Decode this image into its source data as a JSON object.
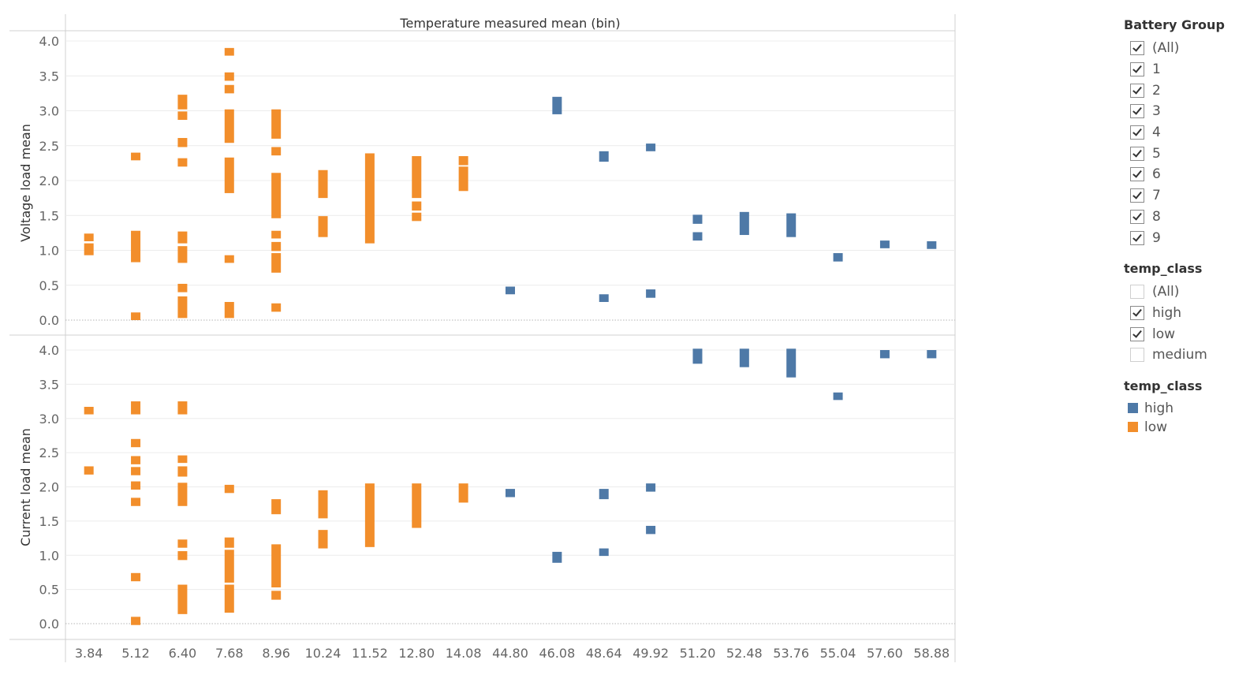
{
  "chart_data": {
    "type": "bar",
    "title": "Temperature measured mean (bin)",
    "categories": [
      "3.84",
      "5.12",
      "6.40",
      "7.68",
      "8.96",
      "10.24",
      "11.52",
      "12.80",
      "14.08",
      "44.80",
      "46.08",
      "48.64",
      "49.92",
      "51.20",
      "52.48",
      "53.76",
      "55.04",
      "57.60",
      "58.88"
    ],
    "y_ticks": [
      "0.0",
      "0.5",
      "1.0",
      "1.5",
      "2.0",
      "2.5",
      "3.0",
      "3.5",
      "4.0"
    ],
    "ylim": [
      0,
      4
    ],
    "legend_position": "right",
    "grid": true,
    "colors": {
      "low": "#f28e2b",
      "high": "#4e79a7"
    },
    "panels": [
      {
        "ylabel": "Voltage load mean",
        "marks": [
          {
            "x": "3.84",
            "series": "low",
            "y0": 0.93,
            "y1": 1.1
          },
          {
            "x": "3.84",
            "series": "low",
            "y0": 1.13,
            "y1": 1.24
          },
          {
            "x": "5.12",
            "series": "low",
            "y0": 2.29,
            "y1": 2.4
          },
          {
            "x": "5.12",
            "series": "low",
            "y0": 0.83,
            "y1": 1.28
          },
          {
            "x": "5.12",
            "series": "low",
            "y0": 0.0,
            "y1": 0.11
          },
          {
            "x": "6.40",
            "series": "low",
            "y0": 3.02,
            "y1": 3.23
          },
          {
            "x": "6.40",
            "series": "low",
            "y0": 2.87,
            "y1": 2.99
          },
          {
            "x": "6.40",
            "series": "low",
            "y0": 2.48,
            "y1": 2.61
          },
          {
            "x": "6.40",
            "series": "low",
            "y0": 2.2,
            "y1": 2.32
          },
          {
            "x": "6.40",
            "series": "low",
            "y0": 1.1,
            "y1": 1.27
          },
          {
            "x": "6.40",
            "series": "low",
            "y0": 0.82,
            "y1": 1.06
          },
          {
            "x": "6.40",
            "series": "low",
            "y0": 0.4,
            "y1": 0.52
          },
          {
            "x": "6.40",
            "series": "low",
            "y0": 0.03,
            "y1": 0.34
          },
          {
            "x": "7.68",
            "series": "low",
            "y0": 3.79,
            "y1": 3.9
          },
          {
            "x": "7.68",
            "series": "low",
            "y0": 3.43,
            "y1": 3.55
          },
          {
            "x": "7.68",
            "series": "low",
            "y0": 3.25,
            "y1": 3.37
          },
          {
            "x": "7.68",
            "series": "low",
            "y0": 2.54,
            "y1": 3.02
          },
          {
            "x": "7.68",
            "series": "low",
            "y0": 1.82,
            "y1": 2.33
          },
          {
            "x": "7.68",
            "series": "low",
            "y0": 0.82,
            "y1": 0.93
          },
          {
            "x": "7.68",
            "series": "low",
            "y0": 0.03,
            "y1": 0.26
          },
          {
            "x": "8.96",
            "series": "low",
            "y0": 2.6,
            "y1": 3.02
          },
          {
            "x": "8.96",
            "series": "low",
            "y0": 2.36,
            "y1": 2.48
          },
          {
            "x": "8.96",
            "series": "low",
            "y0": 1.46,
            "y1": 2.11
          },
          {
            "x": "8.96",
            "series": "low",
            "y0": 1.17,
            "y1": 1.28
          },
          {
            "x": "8.96",
            "series": "low",
            "y0": 0.99,
            "y1": 1.12
          },
          {
            "x": "8.96",
            "series": "low",
            "y0": 0.68,
            "y1": 0.96
          },
          {
            "x": "8.96",
            "series": "low",
            "y0": 0.12,
            "y1": 0.24
          },
          {
            "x": "10.24",
            "series": "low",
            "y0": 1.75,
            "y1": 2.15
          },
          {
            "x": "10.24",
            "series": "low",
            "y0": 1.19,
            "y1": 1.49
          },
          {
            "x": "11.52",
            "series": "low",
            "y0": 1.1,
            "y1": 2.39
          },
          {
            "x": "12.80",
            "series": "low",
            "y0": 1.75,
            "y1": 2.35
          },
          {
            "x": "12.80",
            "series": "low",
            "y0": 1.57,
            "y1": 1.7
          },
          {
            "x": "12.80",
            "series": "low",
            "y0": 1.42,
            "y1": 1.54
          },
          {
            "x": "14.08",
            "series": "low",
            "y0": 2.22,
            "y1": 2.35
          },
          {
            "x": "14.08",
            "series": "low",
            "y0": 1.85,
            "y1": 2.2
          },
          {
            "x": "44.80",
            "series": "high",
            "y0": 0.37,
            "y1": 0.48
          },
          {
            "x": "46.08",
            "series": "high",
            "y0": 2.95,
            "y1": 3.2
          },
          {
            "x": "48.64",
            "series": "high",
            "y0": 2.27,
            "y1": 2.42
          },
          {
            "x": "48.64",
            "series": "high",
            "y0": 0.26,
            "y1": 0.37
          },
          {
            "x": "49.92",
            "series": "high",
            "y0": 2.42,
            "y1": 2.53
          },
          {
            "x": "49.92",
            "series": "high",
            "y0": 0.32,
            "y1": 0.44
          },
          {
            "x": "51.20",
            "series": "high",
            "y0": 1.38,
            "y1": 1.51
          },
          {
            "x": "51.20",
            "series": "high",
            "y0": 1.14,
            "y1": 1.26
          },
          {
            "x": "52.48",
            "series": "high",
            "y0": 1.22,
            "y1": 1.55
          },
          {
            "x": "53.76",
            "series": "high",
            "y0": 1.19,
            "y1": 1.53
          },
          {
            "x": "55.04",
            "series": "high",
            "y0": 0.84,
            "y1": 0.96
          },
          {
            "x": "57.60",
            "series": "high",
            "y0": 1.03,
            "y1": 1.14
          },
          {
            "x": "58.88",
            "series": "high",
            "y0": 1.02,
            "y1": 1.13
          }
        ]
      },
      {
        "ylabel": "Current load mean",
        "marks": [
          {
            "x": "3.84",
            "series": "low",
            "y0": 3.06,
            "y1": 3.17
          },
          {
            "x": "3.84",
            "series": "low",
            "y0": 2.18,
            "y1": 2.3
          },
          {
            "x": "5.12",
            "series": "low",
            "y0": 3.06,
            "y1": 3.25
          },
          {
            "x": "5.12",
            "series": "low",
            "y0": 2.58,
            "y1": 2.7
          },
          {
            "x": "5.12",
            "series": "low",
            "y0": 2.33,
            "y1": 2.45
          },
          {
            "x": "5.12",
            "series": "low",
            "y0": 2.17,
            "y1": 2.29
          },
          {
            "x": "5.12",
            "series": "low",
            "y0": 1.96,
            "y1": 2.08
          },
          {
            "x": "5.12",
            "series": "low",
            "y0": 1.72,
            "y1": 1.84
          },
          {
            "x": "5.12",
            "series": "low",
            "y0": 0.62,
            "y1": 0.74
          },
          {
            "x": "5.12",
            "series": "low",
            "y0": -0.02,
            "y1": 0.1
          },
          {
            "x": "6.40",
            "series": "low",
            "y0": 3.06,
            "y1": 3.25
          },
          {
            "x": "6.40",
            "series": "low",
            "y0": 2.35,
            "y1": 2.46
          },
          {
            "x": "6.40",
            "series": "low",
            "y0": 2.15,
            "y1": 2.3
          },
          {
            "x": "6.40",
            "series": "low",
            "y0": 1.72,
            "y1": 2.06
          },
          {
            "x": "6.40",
            "series": "low",
            "y0": 1.11,
            "y1": 1.23
          },
          {
            "x": "6.40",
            "series": "low",
            "y0": 0.93,
            "y1": 1.06
          },
          {
            "x": "6.40",
            "series": "low",
            "y0": 0.14,
            "y1": 0.57
          },
          {
            "x": "7.68",
            "series": "low",
            "y0": 1.91,
            "y1": 2.03
          },
          {
            "x": "7.68",
            "series": "low",
            "y0": 1.11,
            "y1": 1.26
          },
          {
            "x": "7.68",
            "series": "low",
            "y0": 0.6,
            "y1": 1.08
          },
          {
            "x": "7.68",
            "series": "low",
            "y0": 0.16,
            "y1": 0.57
          },
          {
            "x": "8.96",
            "series": "low",
            "y0": 1.6,
            "y1": 1.82
          },
          {
            "x": "8.96",
            "series": "low",
            "y0": 0.53,
            "y1": 1.16
          },
          {
            "x": "8.96",
            "series": "low",
            "y0": 0.35,
            "y1": 0.48
          },
          {
            "x": "10.24",
            "series": "low",
            "y0": 1.54,
            "y1": 1.95
          },
          {
            "x": "10.24",
            "series": "low",
            "y0": 1.1,
            "y1": 1.37
          },
          {
            "x": "11.52",
            "series": "low",
            "y0": 1.12,
            "y1": 2.05
          },
          {
            "x": "12.80",
            "series": "low",
            "y0": 1.4,
            "y1": 2.05
          },
          {
            "x": "14.08",
            "series": "low",
            "y0": 1.77,
            "y1": 2.05
          },
          {
            "x": "44.80",
            "series": "high",
            "y0": 1.85,
            "y1": 1.97
          },
          {
            "x": "46.08",
            "series": "high",
            "y0": 0.89,
            "y1": 1.05
          },
          {
            "x": "48.64",
            "series": "high",
            "y0": 1.82,
            "y1": 1.97
          },
          {
            "x": "48.64",
            "series": "high",
            "y0": 0.99,
            "y1": 1.1
          },
          {
            "x": "49.92",
            "series": "high",
            "y0": 1.93,
            "y1": 2.05
          },
          {
            "x": "49.92",
            "series": "high",
            "y0": 1.31,
            "y1": 1.43
          },
          {
            "x": "51.20",
            "series": "high",
            "y0": 3.8,
            "y1": 4.02
          },
          {
            "x": "52.48",
            "series": "high",
            "y0": 3.75,
            "y1": 4.02
          },
          {
            "x": "53.76",
            "series": "high",
            "y0": 3.6,
            "y1": 4.02
          },
          {
            "x": "55.04",
            "series": "high",
            "y0": 3.27,
            "y1": 3.38
          },
          {
            "x": "57.60",
            "series": "high",
            "y0": 3.88,
            "y1": 4.0
          },
          {
            "x": "58.88",
            "series": "high",
            "y0": 3.88,
            "y1": 4.0
          }
        ]
      }
    ]
  },
  "filters": [
    {
      "title": "Battery Group",
      "items": [
        {
          "label": "(All)",
          "checked": true
        },
        {
          "label": "1",
          "checked": true
        },
        {
          "label": "2",
          "checked": true
        },
        {
          "label": "3",
          "checked": true
        },
        {
          "label": "4",
          "checked": true
        },
        {
          "label": "5",
          "checked": true
        },
        {
          "label": "6",
          "checked": true
        },
        {
          "label": "7",
          "checked": true
        },
        {
          "label": "8",
          "checked": true
        },
        {
          "label": "9",
          "checked": true
        }
      ]
    },
    {
      "title": "temp_class",
      "items": [
        {
          "label": "(All)",
          "checked": false
        },
        {
          "label": "high",
          "checked": true
        },
        {
          "label": "low",
          "checked": true
        },
        {
          "label": "medium",
          "checked": false
        }
      ]
    }
  ],
  "legend": {
    "title": "temp_class",
    "items": [
      {
        "label": "high",
        "color": "#4e79a7"
      },
      {
        "label": "low",
        "color": "#f28e2b"
      }
    ]
  }
}
